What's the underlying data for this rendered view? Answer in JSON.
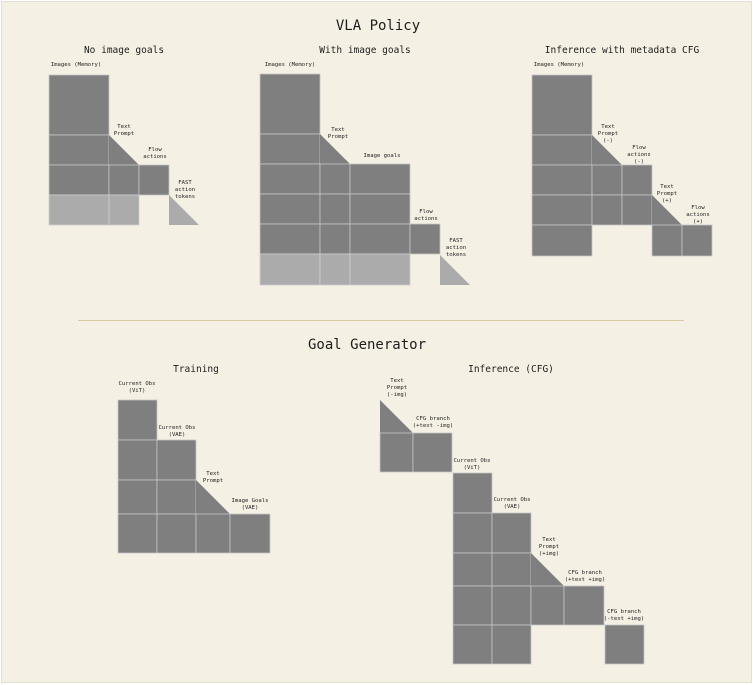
{
  "vla_policy": {
    "title": "VLA Policy",
    "no_image_goals": {
      "title": "No image goals",
      "labels": {
        "images_memory": "Images (Memory)",
        "text_prompt": "Text\nPrompt",
        "flow_actions": "Flow\nactions",
        "fast_tokens": "FAST\naction\ntokens"
      }
    },
    "with_image_goals": {
      "title": "With image goals",
      "labels": {
        "images_memory": "Images (Memory)",
        "text_prompt": "Text\nPrompt",
        "image_goals": "Image goals",
        "flow_actions": "Flow\nactions",
        "fast_tokens": "FAST\naction\ntokens"
      }
    },
    "metadata_cfg": {
      "title": "Inference with metadata CFG",
      "labels": {
        "images_memory": "Images (Memory)",
        "text_prompt_neg": "Text\nPrompt\n(-)",
        "flow_actions_neg": "Flow\nactions\n(-)",
        "text_prompt_pos": "Text\nPrompt\n(+)",
        "flow_actions_pos": "Flow\nactions\n(+)"
      }
    }
  },
  "goal_generator": {
    "title": "Goal Generator",
    "training": {
      "title": "Training",
      "labels": {
        "current_obs_vit": "Current Obs\n(ViT)",
        "current_obs_vae": "Current Obs\n(VAE)",
        "text_prompt": "Text\nPrompt",
        "image_goals_vae": "Image Goals\n(VAE)"
      }
    },
    "inference": {
      "title": "Inference (CFG)",
      "labels": {
        "text_prompt_neg_img": "Text\nPrompt\n(-img)",
        "cfg_branch_text_noimg": "CFG branch\n(+text -img)",
        "current_obs_vit": "Current Obs\n(ViT)",
        "current_obs_vae": "Current Obs\n(VAE)",
        "text_prompt_pos_img": "Text\nPrompt\n(+img)",
        "cfg_branch_text_img": "CFG branch\n(+text +img)",
        "cfg_branch_notext_img": "CFG branch\n(-text +img)"
      }
    }
  }
}
